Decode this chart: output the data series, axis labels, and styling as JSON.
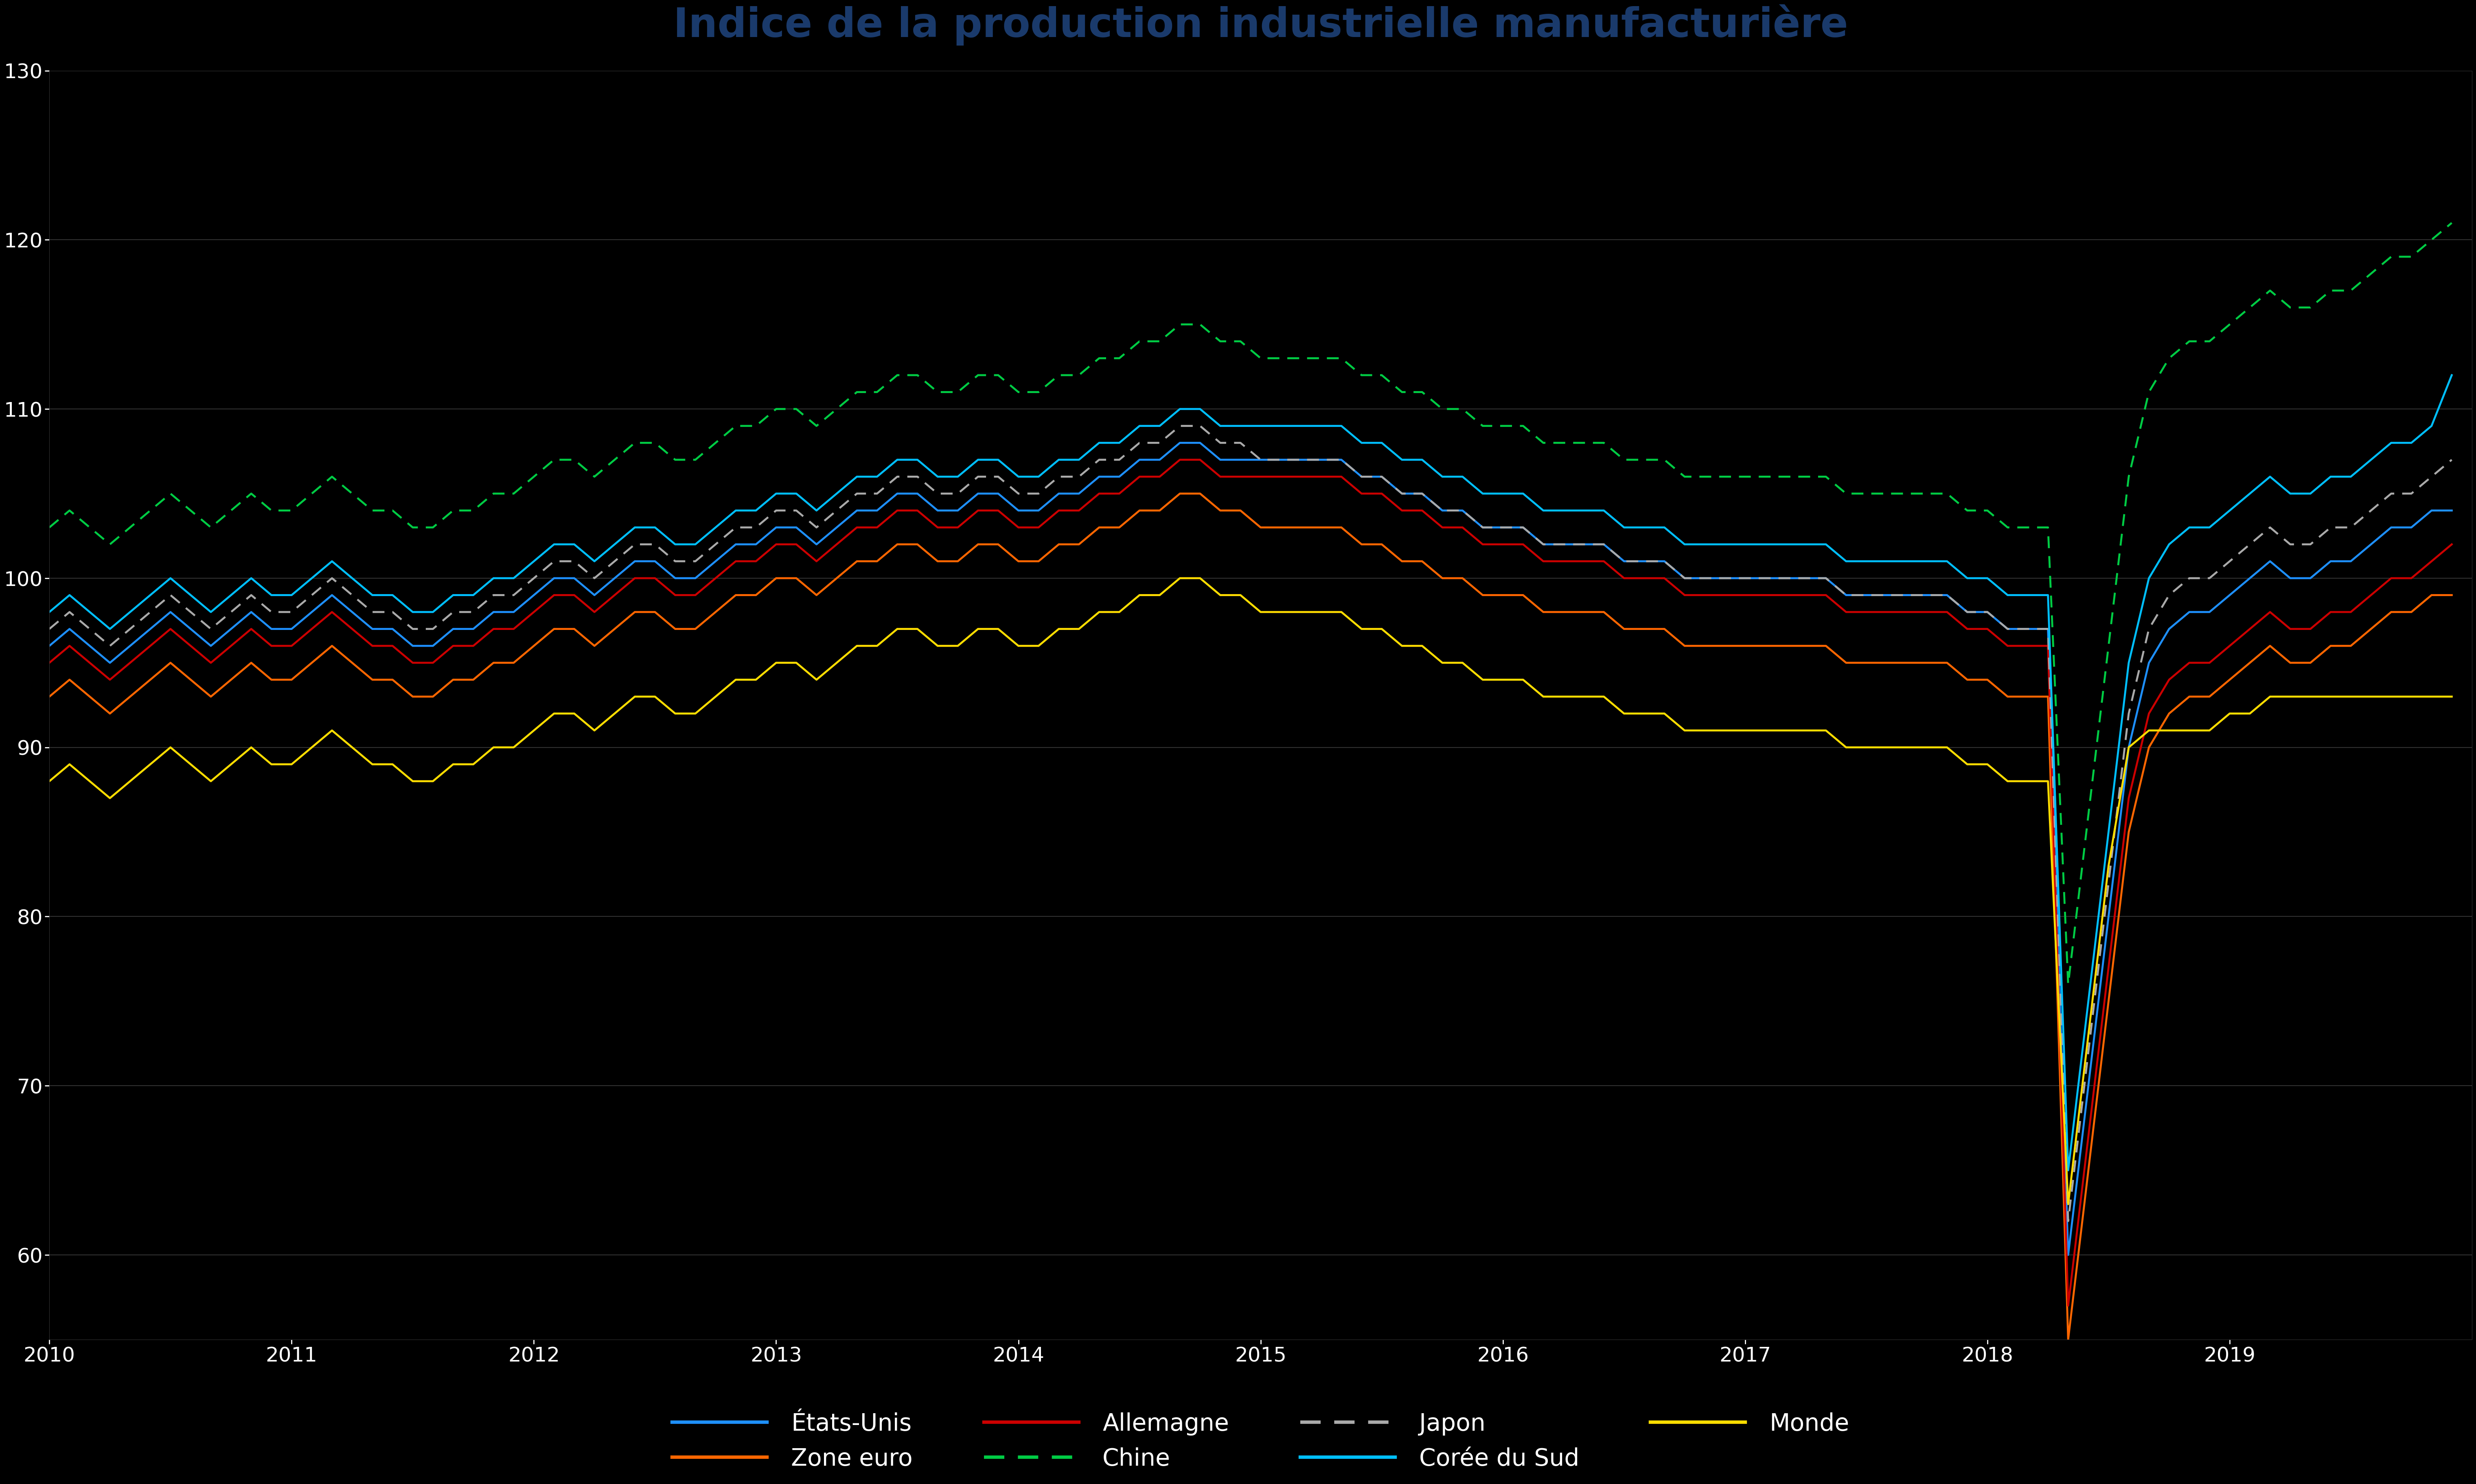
{
  "title": "Indice de la production industrielle manufacturière",
  "title_color": "#1a3a6b",
  "background_color": "#000000",
  "plot_bg_color": "#000000",
  "grid_color": "#333333",
  "text_color": "#ffffff",
  "ylim": [
    55,
    130
  ],
  "xlim": [
    0,
    120
  ],
  "yticks": [
    60,
    70,
    80,
    90,
    100,
    110,
    120,
    130
  ],
  "series": [
    {
      "label": "États-Unis",
      "color": "#1e90ff",
      "linestyle": "solid",
      "linewidth": 3.5,
      "values": [
        96,
        97,
        96,
        95,
        96,
        97,
        98,
        97,
        96,
        97,
        98,
        97,
        97,
        98,
        99,
        98,
        97,
        97,
        96,
        96,
        97,
        97,
        98,
        98,
        99,
        100,
        100,
        99,
        100,
        101,
        101,
        100,
        100,
        101,
        102,
        102,
        103,
        103,
        102,
        103,
        104,
        104,
        105,
        105,
        104,
        104,
        105,
        105,
        104,
        104,
        105,
        105,
        106,
        106,
        107,
        107,
        108,
        108,
        107,
        107,
        107,
        107,
        107,
        107,
        107,
        106,
        106,
        105,
        105,
        104,
        104,
        103,
        103,
        103,
        102,
        102,
        102,
        102,
        101,
        101,
        101,
        100,
        100,
        100,
        100,
        100,
        100,
        100,
        100,
        99,
        99,
        99,
        99,
        99,
        99,
        98,
        98,
        97,
        97,
        97,
        60,
        70,
        80,
        90,
        95,
        97,
        98,
        98,
        99,
        100,
        101,
        100,
        100,
        101,
        101,
        102,
        103,
        103,
        104,
        104
      ]
    },
    {
      "label": "Zone euro",
      "color": "#ff6600",
      "linestyle": "solid",
      "linewidth": 3.5,
      "values": [
        93,
        94,
        93,
        92,
        93,
        94,
        95,
        94,
        93,
        94,
        95,
        94,
        94,
        95,
        96,
        95,
        94,
        94,
        93,
        93,
        94,
        94,
        95,
        95,
        96,
        97,
        97,
        96,
        97,
        98,
        98,
        97,
        97,
        98,
        99,
        99,
        100,
        100,
        99,
        100,
        101,
        101,
        102,
        102,
        101,
        101,
        102,
        102,
        101,
        101,
        102,
        102,
        103,
        103,
        104,
        104,
        105,
        105,
        104,
        104,
        103,
        103,
        103,
        103,
        103,
        102,
        102,
        101,
        101,
        100,
        100,
        99,
        99,
        99,
        98,
        98,
        98,
        98,
        97,
        97,
        97,
        96,
        96,
        96,
        96,
        96,
        96,
        96,
        96,
        95,
        95,
        95,
        95,
        95,
        95,
        94,
        94,
        93,
        93,
        93,
        55,
        65,
        75,
        85,
        90,
        92,
        93,
        93,
        94,
        95,
        96,
        95,
        95,
        96,
        96,
        97,
        98,
        98,
        99,
        99
      ]
    },
    {
      "label": "Allemagne",
      "color": "#cc0000",
      "linestyle": "solid",
      "linewidth": 3.5,
      "values": [
        95,
        96,
        95,
        94,
        95,
        96,
        97,
        96,
        95,
        96,
        97,
        96,
        96,
        97,
        98,
        97,
        96,
        96,
        95,
        95,
        96,
        96,
        97,
        97,
        98,
        99,
        99,
        98,
        99,
        100,
        100,
        99,
        99,
        100,
        101,
        101,
        102,
        102,
        101,
        102,
        103,
        103,
        104,
        104,
        103,
        103,
        104,
        104,
        103,
        103,
        104,
        104,
        105,
        105,
        106,
        106,
        107,
        107,
        106,
        106,
        106,
        106,
        106,
        106,
        106,
        105,
        105,
        104,
        104,
        103,
        103,
        102,
        102,
        102,
        101,
        101,
        101,
        101,
        100,
        100,
        100,
        99,
        99,
        99,
        99,
        99,
        99,
        99,
        99,
        98,
        98,
        98,
        98,
        98,
        98,
        97,
        97,
        96,
        96,
        96,
        57,
        67,
        77,
        87,
        92,
        94,
        95,
        95,
        96,
        97,
        98,
        97,
        97,
        98,
        98,
        99,
        100,
        100,
        101,
        102
      ]
    },
    {
      "label": "Chine",
      "color": "#00cc44",
      "linestyle": "dashed",
      "linewidth": 3.5,
      "values": [
        103,
        104,
        103,
        102,
        103,
        104,
        105,
        104,
        103,
        104,
        105,
        104,
        104,
        105,
        106,
        105,
        104,
        104,
        103,
        103,
        104,
        104,
        105,
        105,
        106,
        107,
        107,
        106,
        107,
        108,
        108,
        107,
        107,
        108,
        109,
        109,
        110,
        110,
        109,
        110,
        111,
        111,
        112,
        112,
        111,
        111,
        112,
        112,
        111,
        111,
        112,
        112,
        113,
        113,
        114,
        114,
        115,
        115,
        114,
        114,
        113,
        113,
        113,
        113,
        113,
        112,
        112,
        111,
        111,
        110,
        110,
        109,
        109,
        109,
        108,
        108,
        108,
        108,
        107,
        107,
        107,
        106,
        106,
        106,
        106,
        106,
        106,
        106,
        106,
        105,
        105,
        105,
        105,
        105,
        105,
        104,
        104,
        103,
        103,
        103,
        76,
        86,
        96,
        106,
        111,
        113,
        114,
        114,
        115,
        116,
        117,
        116,
        116,
        117,
        117,
        118,
        119,
        119,
        120,
        121
      ]
    },
    {
      "label": "Japon",
      "color": "#aaaaaa",
      "linestyle": "dashed",
      "linewidth": 3.5,
      "values": [
        97,
        98,
        97,
        96,
        97,
        98,
        99,
        98,
        97,
        98,
        99,
        98,
        98,
        99,
        100,
        99,
        98,
        98,
        97,
        97,
        98,
        98,
        99,
        99,
        100,
        101,
        101,
        100,
        101,
        102,
        102,
        101,
        101,
        102,
        103,
        103,
        104,
        104,
        103,
        104,
        105,
        105,
        106,
        106,
        105,
        105,
        106,
        106,
        105,
        105,
        106,
        106,
        107,
        107,
        108,
        108,
        109,
        109,
        108,
        108,
        107,
        107,
        107,
        107,
        107,
        106,
        106,
        105,
        105,
        104,
        104,
        103,
        103,
        103,
        102,
        102,
        102,
        102,
        101,
        101,
        101,
        100,
        100,
        100,
        100,
        100,
        100,
        100,
        100,
        99,
        99,
        99,
        99,
        99,
        99,
        98,
        98,
        97,
        97,
        97,
        62,
        72,
        82,
        92,
        97,
        99,
        100,
        100,
        101,
        102,
        103,
        102,
        102,
        103,
        103,
        104,
        105,
        105,
        106,
        107
      ]
    },
    {
      "label": "Corée du Sud",
      "color": "#00bfff",
      "linestyle": "solid",
      "linewidth": 3.5,
      "values": [
        98,
        99,
        98,
        97,
        98,
        99,
        100,
        99,
        98,
        99,
        100,
        99,
        99,
        100,
        101,
        100,
        99,
        99,
        98,
        98,
        99,
        99,
        100,
        100,
        101,
        102,
        102,
        101,
        102,
        103,
        103,
        102,
        102,
        103,
        104,
        104,
        105,
        105,
        104,
        105,
        106,
        106,
        107,
        107,
        106,
        106,
        107,
        107,
        106,
        106,
        107,
        107,
        108,
        108,
        109,
        109,
        110,
        110,
        109,
        109,
        109,
        109,
        109,
        109,
        109,
        108,
        108,
        107,
        107,
        106,
        106,
        105,
        105,
        105,
        104,
        104,
        104,
        104,
        103,
        103,
        103,
        102,
        102,
        102,
        102,
        102,
        102,
        102,
        102,
        101,
        101,
        101,
        101,
        101,
        101,
        100,
        100,
        99,
        99,
        99,
        65,
        75,
        85,
        95,
        100,
        102,
        103,
        103,
        104,
        105,
        106,
        105,
        105,
        106,
        106,
        107,
        108,
        108,
        109,
        112
      ]
    },
    {
      "label": "Monde",
      "color": "#ffdd00",
      "linestyle": "solid",
      "linewidth": 3.5,
      "values": [
        88,
        89,
        88,
        87,
        88,
        89,
        90,
        89,
        88,
        89,
        90,
        89,
        89,
        90,
        91,
        90,
        89,
        89,
        88,
        88,
        89,
        89,
        90,
        90,
        91,
        92,
        92,
        91,
        92,
        93,
        93,
        92,
        92,
        93,
        94,
        94,
        95,
        95,
        94,
        95,
        96,
        96,
        97,
        97,
        96,
        96,
        97,
        97,
        96,
        96,
        97,
        97,
        98,
        98,
        99,
        99,
        100,
        100,
        99,
        99,
        98,
        98,
        98,
        98,
        98,
        97,
        97,
        96,
        96,
        95,
        95,
        94,
        94,
        94,
        93,
        93,
        93,
        93,
        92,
        92,
        92,
        91,
        91,
        91,
        91,
        91,
        91,
        91,
        91,
        90,
        90,
        90,
        90,
        90,
        90,
        89,
        89,
        88,
        88,
        88,
        63,
        73,
        83,
        90,
        91,
        91,
        91,
        91,
        92,
        92,
        93,
        93,
        93,
        93,
        93,
        93,
        93,
        93,
        93,
        93
      ]
    }
  ],
  "legend_entries": [
    {
      "label": "États-Unis",
      "color": "#1e90ff",
      "linestyle": "solid"
    },
    {
      "label": "Zone euro",
      "color": "#ff6600",
      "linestyle": "solid"
    },
    {
      "label": "Allemagne",
      "color": "#cc0000",
      "linestyle": "solid"
    },
    {
      "label": "Chine",
      "color": "#00cc44",
      "linestyle": "dashed"
    },
    {
      "label": "Japon",
      "color": "#aaaaaa",
      "linestyle": "dashed"
    },
    {
      "label": "Corée du Sud",
      "color": "#00bfff",
      "linestyle": "solid"
    },
    {
      "label": "Monde",
      "color": "#ffdd00",
      "linestyle": "solid"
    }
  ]
}
